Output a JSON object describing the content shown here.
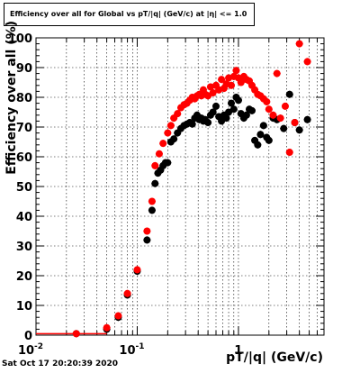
{
  "title": "Efficiency over all for Global vs pT/|q| (GeV/c) at |η| <= 1.0",
  "footer": "Sat Oct 17 20:20:39 2020",
  "chart_data": {
    "type": "scatter",
    "title": "Efficiency over all for Global vs pT/|q| (GeV/c) at |η| <= 1.0",
    "xlabel": "pT/|q| (GeV/c)",
    "ylabel": "Efficiency over all (%)",
    "xscale": "log",
    "xlim": [
      0.01,
      7
    ],
    "ylim": [
      0,
      100
    ],
    "grid": true,
    "x_tick_labels": [
      "10^-2",
      "10^-1",
      "1"
    ],
    "y_tick_labels": [
      "0",
      "10",
      "20",
      "30",
      "40",
      "50",
      "60",
      "70",
      "80",
      "90",
      "100"
    ],
    "series": [
      {
        "color": "#000000",
        "points": [
          [
            0.025,
            0.5
          ],
          [
            0.05,
            2.0
          ],
          [
            0.065,
            6.0
          ],
          [
            0.08,
            13.5
          ],
          [
            0.1,
            21.5
          ],
          [
            0.125,
            32.0
          ],
          [
            0.14,
            42.0
          ],
          [
            0.15,
            51.0
          ],
          [
            0.16,
            54.5
          ],
          [
            0.17,
            55.5
          ],
          [
            0.18,
            57.0
          ],
          [
            0.19,
            58.0
          ],
          [
            0.2,
            58.0
          ],
          [
            0.215,
            65.0
          ],
          [
            0.23,
            66.0
          ],
          [
            0.25,
            68.0
          ],
          [
            0.27,
            69.5
          ],
          [
            0.29,
            70.5
          ],
          [
            0.31,
            71.0
          ],
          [
            0.33,
            71.5
          ],
          [
            0.35,
            71.0
          ],
          [
            0.37,
            73.0
          ],
          [
            0.39,
            74.0
          ],
          [
            0.41,
            72.5
          ],
          [
            0.43,
            73.0
          ],
          [
            0.45,
            72.0
          ],
          [
            0.47,
            72.5
          ],
          [
            0.5,
            71.5
          ],
          [
            0.53,
            74.0
          ],
          [
            0.56,
            75.0
          ],
          [
            0.6,
            77.0
          ],
          [
            0.64,
            73.5
          ],
          [
            0.68,
            72.0
          ],
          [
            0.72,
            74.0
          ],
          [
            0.76,
            73.0
          ],
          [
            0.8,
            75.0
          ],
          [
            0.85,
            78.0
          ],
          [
            0.9,
            76.0
          ],
          [
            0.95,
            80.0
          ],
          [
            1.0,
            79.0
          ],
          [
            1.06,
            74.5
          ],
          [
            1.13,
            73.0
          ],
          [
            1.2,
            74.0
          ],
          [
            1.28,
            76.0
          ],
          [
            1.36,
            75.5
          ],
          [
            1.45,
            65.5
          ],
          [
            1.55,
            64.0
          ],
          [
            1.65,
            67.5
          ],
          [
            1.77,
            70.5
          ],
          [
            1.9,
            66.5
          ],
          [
            2.0,
            65.5
          ],
          [
            2.2,
            73.0
          ],
          [
            2.4,
            72.5
          ],
          [
            2.8,
            69.5
          ],
          [
            3.2,
            81.0
          ],
          [
            3.6,
            71.5
          ],
          [
            4.0,
            69.0
          ],
          [
            4.8,
            72.5
          ]
        ]
      },
      {
        "color": "#ff0000",
        "points": [
          [
            0.025,
            0.5
          ],
          [
            0.05,
            2.5
          ],
          [
            0.065,
            6.5
          ],
          [
            0.08,
            14.0
          ],
          [
            0.1,
            22.0
          ],
          [
            0.125,
            35.0
          ],
          [
            0.14,
            45.0
          ],
          [
            0.15,
            57.0
          ],
          [
            0.165,
            61.0
          ],
          [
            0.18,
            64.5
          ],
          [
            0.2,
            68.0
          ],
          [
            0.215,
            70.5
          ],
          [
            0.23,
            73.0
          ],
          [
            0.25,
            74.5
          ],
          [
            0.27,
            76.5
          ],
          [
            0.29,
            77.5
          ],
          [
            0.31,
            78.0
          ],
          [
            0.33,
            79.0
          ],
          [
            0.35,
            80.0
          ],
          [
            0.37,
            79.5
          ],
          [
            0.39,
            80.5
          ],
          [
            0.41,
            81.0
          ],
          [
            0.43,
            80.5
          ],
          [
            0.45,
            82.5
          ],
          [
            0.47,
            81.0
          ],
          [
            0.5,
            80.5
          ],
          [
            0.53,
            83.5
          ],
          [
            0.56,
            81.5
          ],
          [
            0.6,
            84.0
          ],
          [
            0.64,
            82.5
          ],
          [
            0.68,
            86.0
          ],
          [
            0.72,
            83.0
          ],
          [
            0.76,
            84.5
          ],
          [
            0.8,
            86.5
          ],
          [
            0.85,
            84.0
          ],
          [
            0.9,
            87.0
          ],
          [
            0.95,
            89.0
          ],
          [
            1.0,
            86.5
          ],
          [
            1.06,
            85.0
          ],
          [
            1.13,
            87.0
          ],
          [
            1.2,
            86.0
          ],
          [
            1.28,
            85.5
          ],
          [
            1.36,
            84.0
          ],
          [
            1.45,
            82.5
          ],
          [
            1.55,
            81.0
          ],
          [
            1.65,
            80.5
          ],
          [
            1.77,
            79.5
          ],
          [
            1.9,
            78.5
          ],
          [
            2.0,
            76.0
          ],
          [
            2.2,
            74.0
          ],
          [
            2.4,
            88.0
          ],
          [
            2.6,
            73.0
          ],
          [
            2.9,
            77.0
          ],
          [
            3.2,
            61.5
          ],
          [
            3.6,
            71.5
          ],
          [
            4.0,
            98.0
          ],
          [
            4.8,
            92.0
          ]
        ]
      }
    ]
  }
}
